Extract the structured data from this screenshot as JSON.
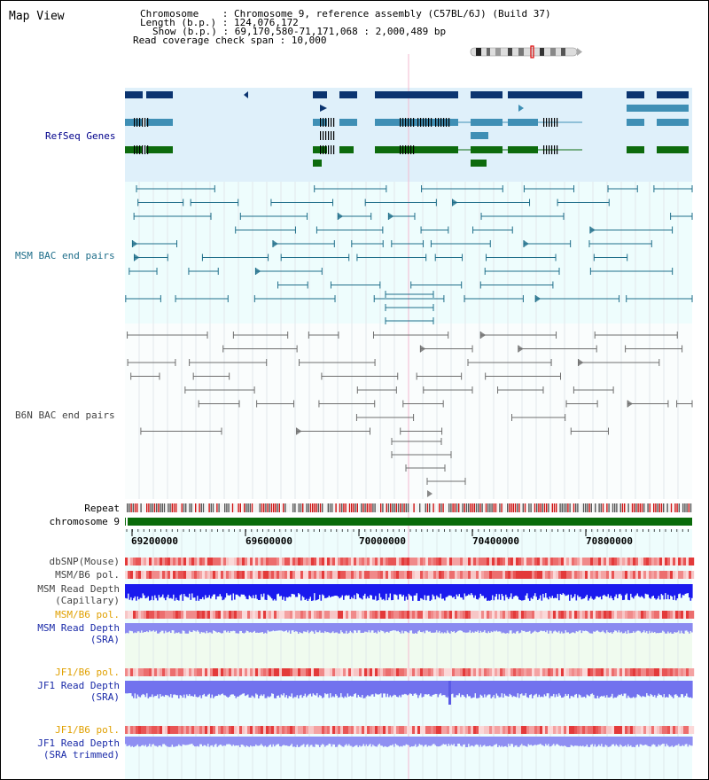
{
  "header": {
    "title": "Map View",
    "info": {
      "chromosome": "Chromosome    : Chromosome 9, reference assembly (C57BL/6J) (Build 37)",
      "length": "Length (b.p.) : 124,076,172",
      "show": "Show (b.p.) : 69,170,580-71,171,068 : 2,000,489 bp",
      "coverage": "Read coverage check span : 10,000"
    }
  },
  "tracks": {
    "refseq": "RefSeq Genes",
    "msm_bac": "MSM BAC end pairs",
    "b6n_bac": "B6N BAC end pairs",
    "repeat": "Repeat",
    "chromosome": "chromosome 9",
    "dbsnp": "dbSNP(Mouse)",
    "msm_b6_pol": "MSM/B6 pol.",
    "msm_read_depth_cap_1": "MSM Read Depth",
    "msm_read_depth_cap_2": "(Capillary)",
    "msm_b6_pol_2": "MSM/B6 pol.",
    "msm_read_depth_sra_1": "MSM Read Depth",
    "msm_read_depth_sra_2": "(SRA)",
    "jf1_b6_pol": "JF1/B6 pol.",
    "jf1_read_depth_1": "JF1 Read Depth",
    "jf1_read_depth_2": "(SRA)",
    "jf1_b6_pol_2": "JF1/B6 pol.",
    "jf1_trim_1": "JF1 Read Depth",
    "jf1_trim_2": "(SRA trimmed)"
  },
  "axis": {
    "ticks": [
      "69200000",
      "69600000",
      "70000000",
      "70400000",
      "70800000"
    ]
  },
  "colors": {
    "refseq_bg": "#dff0fa",
    "bac_bg": "#eefdfd",
    "dark_blue": "#0b3470",
    "mid_blue": "#3f8fb5",
    "green": "#0d6b0d",
    "msm_bac_line": "#1f6e8a",
    "b6n_bac_line": "#6e6e6e",
    "chrom_green": "#0a6b0a",
    "label_gray": "#444444",
    "label_navy": "#00008b",
    "label_teal": "#1f6e8a",
    "label_orange": "#e0a000",
    "label_blue": "#1a2aa8"
  }
}
